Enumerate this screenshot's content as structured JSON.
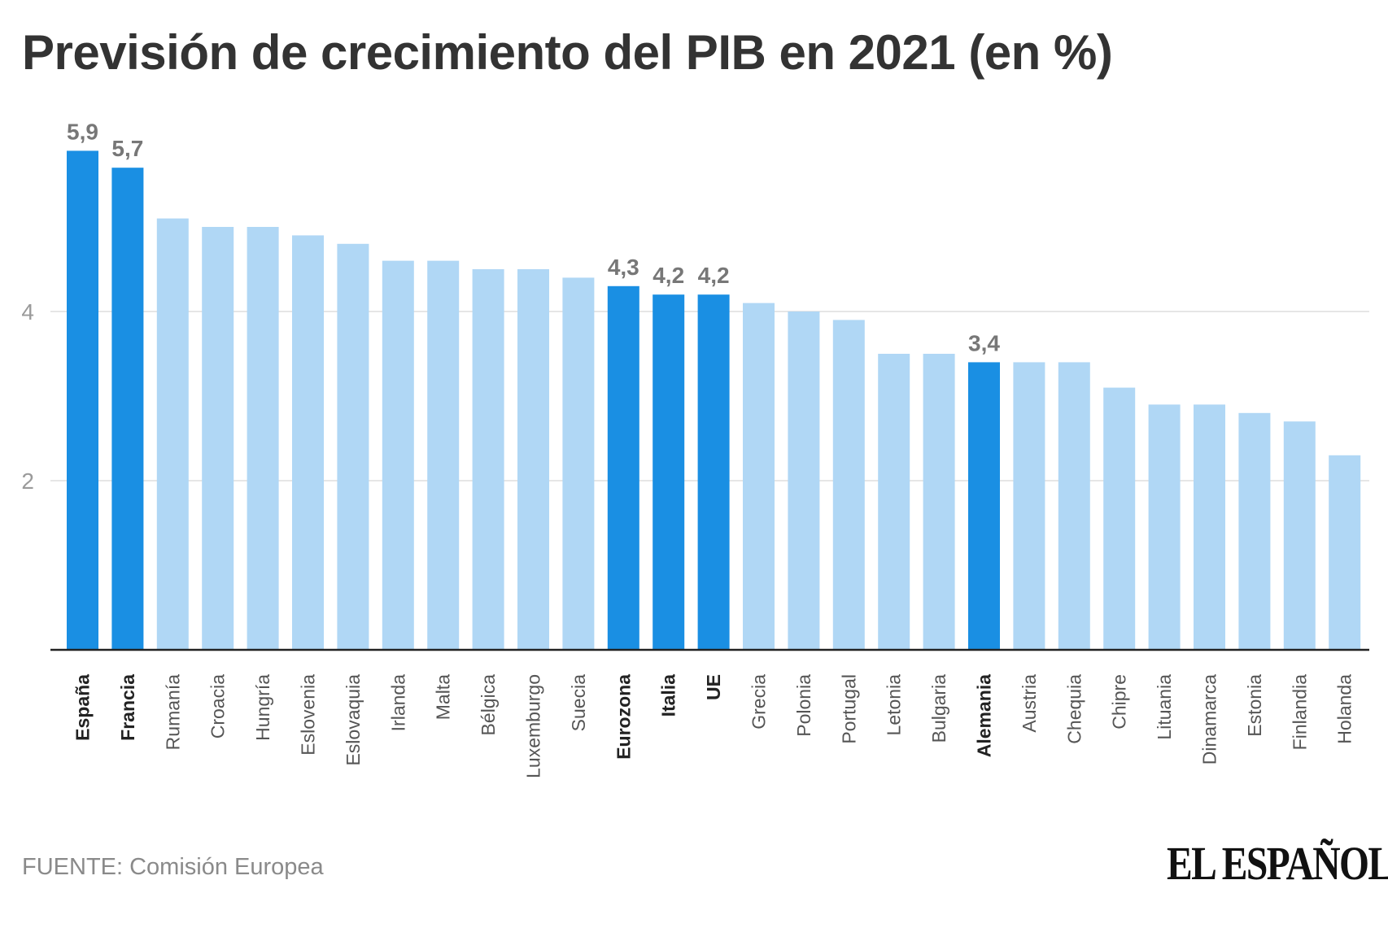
{
  "title": "Previsión de crecimiento del PIB en 2021 (en %)",
  "source": "FUENTE: Comisión Europea",
  "logo": "EL ESPAÑOL",
  "colors": {
    "highlight": "#1a8fe3",
    "normal": "#b0d7f5",
    "grid": "#e6e6e6",
    "axis": "#222222",
    "value_label": "#777777",
    "tick_label": "#9a9a9a"
  },
  "chart_data": {
    "type": "bar",
    "title": "Previsión de crecimiento del PIB en 2021 (en %)",
    "xlabel": "",
    "ylabel": "",
    "ylim": [
      0,
      6
    ],
    "yticks": [
      2,
      4
    ],
    "grid": true,
    "categories": [
      "España",
      "Francia",
      "Rumanía",
      "Croacia",
      "Hungría",
      "Eslovenia",
      "Eslovaquia",
      "Irlanda",
      "Malta",
      "Bélgica",
      "Luxemburgo",
      "Suecia",
      "Eurozona",
      "Italia",
      "UE",
      "Grecia",
      "Polonia",
      "Portugal",
      "Letonia",
      "Bulgaria",
      "Alemania",
      "Austria",
      "Chequia",
      "Chipre",
      "Lituania",
      "Dinamarca",
      "Estonia",
      "Finlandia",
      "Holanda"
    ],
    "values": [
      5.9,
      5.7,
      5.1,
      5.0,
      5.0,
      4.9,
      4.8,
      4.6,
      4.6,
      4.5,
      4.5,
      4.4,
      4.3,
      4.2,
      4.2,
      4.1,
      4.0,
      3.9,
      3.5,
      3.5,
      3.4,
      3.4,
      3.4,
      3.1,
      2.9,
      2.9,
      2.8,
      2.7,
      2.3
    ],
    "highlighted": [
      "España",
      "Francia",
      "Eurozona",
      "Italia",
      "UE",
      "Alemania"
    ],
    "data_labels": {
      "España": "5,9",
      "Francia": "5,7",
      "Eurozona": "4,3",
      "Italia": "4,2",
      "UE": "4,2",
      "Alemania": "3,4"
    }
  }
}
